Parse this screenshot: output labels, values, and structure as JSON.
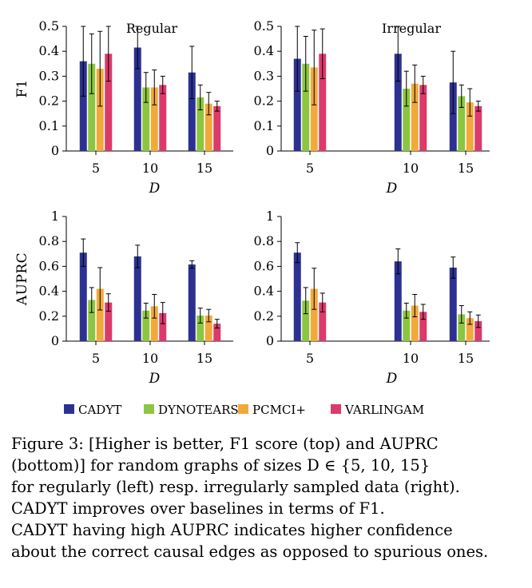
{
  "legend": {
    "items": [
      {
        "name": "CADYT",
        "color": "#2c3191"
      },
      {
        "name": "DYNOTEARS",
        "color": "#8cc641"
      },
      {
        "name": "PCMCI+",
        "color": "#f2a93b"
      },
      {
        "name": "VARLINGAM",
        "color": "#dc3a6b"
      }
    ]
  },
  "caption": {
    "lines": [
      "Figure 3: [Higher is better, F1 score (top) and AUPRC",
      "(bottom)] for random graphs of sizes D ∈ {5, 10, 15}",
      "for regularly (left) resp. irregularly sampled data (right).",
      "CADYT improves over baselines in terms of F1.",
      "CADYT having high AUPRC indicates higher confidence",
      "about the correct causal edges as opposed to spurious ones."
    ]
  },
  "chart_data": [
    {
      "type": "bar",
      "title": "Regular",
      "xlabel": "D",
      "ylabel": "F1",
      "categories": [
        "5",
        "10",
        "15"
      ],
      "ylim": [
        0,
        0.5
      ],
      "yticks": [
        "0",
        "0.1",
        "0.2",
        "0.3",
        "0.4",
        "0.5"
      ],
      "series": [
        {
          "name": "CADYT",
          "values": [
            0.36,
            0.415,
            0.315
          ],
          "errors": [
            0.14,
            0.085,
            0.105
          ]
        },
        {
          "name": "DYNOTEARS",
          "values": [
            0.35,
            0.255,
            0.215
          ],
          "errors": [
            0.12,
            0.06,
            0.05
          ]
        },
        {
          "name": "PCMCI+",
          "values": [
            0.33,
            0.255,
            0.19
          ],
          "errors": [
            0.15,
            0.07,
            0.045
          ]
        },
        {
          "name": "VARLINGAM",
          "values": [
            0.39,
            0.265,
            0.18
          ],
          "errors": [
            0.11,
            0.035,
            0.02
          ]
        }
      ]
    },
    {
      "type": "bar",
      "title": "Irregular",
      "xlabel": "D",
      "ylabel": "",
      "categories": [
        "5",
        "10",
        "15"
      ],
      "ylim": [
        0,
        0.5
      ],
      "yticks": [
        "0",
        "0.1",
        "0.2",
        "0.3",
        "0.4",
        "0.5"
      ],
      "series": [
        {
          "name": "CADYT",
          "values": [
            0.37,
            0.39,
            0.275
          ],
          "errors": [
            0.13,
            0.11,
            0.125
          ]
        },
        {
          "name": "DYNOTEARS",
          "values": [
            0.35,
            0.25,
            0.22
          ],
          "errors": [
            0.11,
            0.07,
            0.045
          ]
        },
        {
          "name": "PCMCI+",
          "values": [
            0.335,
            0.27,
            0.195
          ],
          "errors": [
            0.15,
            0.075,
            0.055
          ]
        },
        {
          "name": "VARLINGAM",
          "values": [
            0.39,
            0.265,
            0.18
          ],
          "errors": [
            0.1,
            0.035,
            0.02
          ]
        }
      ]
    },
    {
      "type": "bar",
      "title": "",
      "xlabel": "D",
      "ylabel": "AUPRC",
      "categories": [
        "5",
        "10",
        "15"
      ],
      "ylim": [
        0,
        1
      ],
      "yticks": [
        "0",
        "0.2",
        "0.4",
        "0.6",
        "0.8",
        "1"
      ],
      "series": [
        {
          "name": "CADYT",
          "values": [
            0.71,
            0.68,
            0.615
          ],
          "errors": [
            0.11,
            0.09,
            0.03
          ]
        },
        {
          "name": "DYNOTEARS",
          "values": [
            0.33,
            0.245,
            0.205
          ],
          "errors": [
            0.1,
            0.06,
            0.06
          ]
        },
        {
          "name": "PCMCI+",
          "values": [
            0.42,
            0.28,
            0.205
          ],
          "errors": [
            0.17,
            0.095,
            0.05
          ]
        },
        {
          "name": "VARLINGAM",
          "values": [
            0.31,
            0.225,
            0.14
          ],
          "errors": [
            0.07,
            0.085,
            0.035
          ]
        }
      ]
    },
    {
      "type": "bar",
      "title": "",
      "xlabel": "D",
      "ylabel": "",
      "categories": [
        "5",
        "10",
        "15"
      ],
      "ylim": [
        0,
        1
      ],
      "yticks": [
        "0",
        "0.2",
        "0.4",
        "0.6",
        "0.8",
        "1"
      ],
      "series": [
        {
          "name": "CADYT",
          "values": [
            0.71,
            0.64,
            0.59
          ],
          "errors": [
            0.08,
            0.1,
            0.085
          ]
        },
        {
          "name": "DYNOTEARS",
          "values": [
            0.325,
            0.245,
            0.215
          ],
          "errors": [
            0.105,
            0.06,
            0.07
          ]
        },
        {
          "name": "PCMCI+",
          "values": [
            0.42,
            0.285,
            0.185
          ],
          "errors": [
            0.165,
            0.09,
            0.05
          ]
        },
        {
          "name": "VARLINGAM",
          "values": [
            0.31,
            0.235,
            0.16
          ],
          "errors": [
            0.075,
            0.06,
            0.05
          ]
        }
      ]
    }
  ]
}
